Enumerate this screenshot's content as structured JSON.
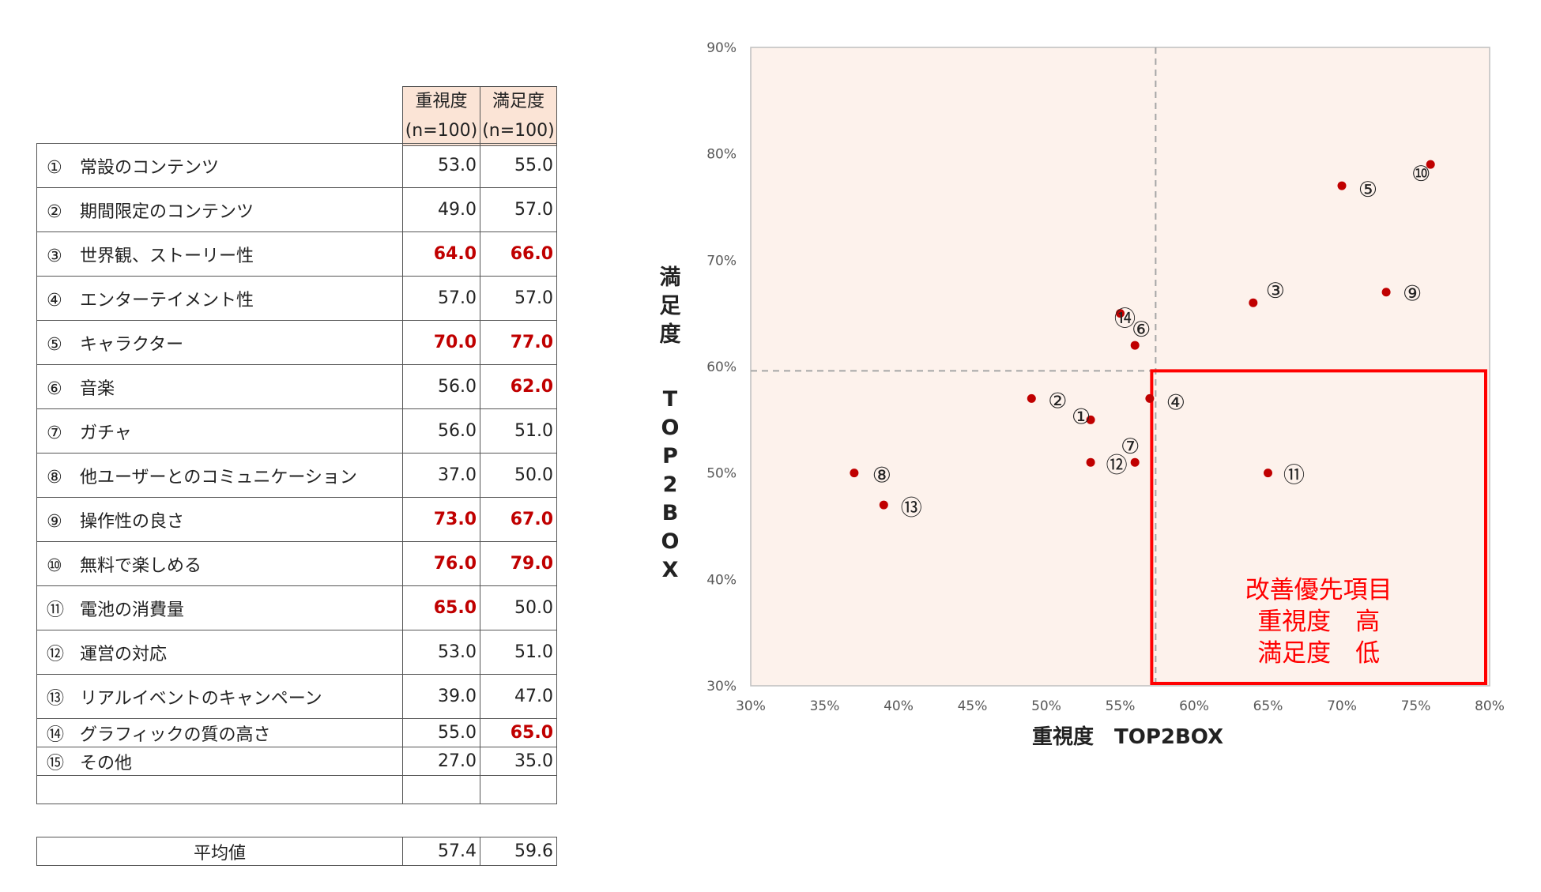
{
  "table": {
    "header": {
      "col1_line1": "重視度",
      "col1_line2": "(n=100)",
      "col2_line1": "満足度",
      "col2_line2": "(n=100)"
    },
    "rows": [
      {
        "num": "①",
        "label": "常設のコンテンツ",
        "importance": "53.0",
        "satisfaction": "55.0",
        "imp_hi": false,
        "sat_hi": false
      },
      {
        "num": "②",
        "label": "期間限定のコンテンツ",
        "importance": "49.0",
        "satisfaction": "57.0",
        "imp_hi": false,
        "sat_hi": false
      },
      {
        "num": "③",
        "label": "世界観、ストーリー性",
        "importance": "64.0",
        "satisfaction": "66.0",
        "imp_hi": true,
        "sat_hi": true
      },
      {
        "num": "④",
        "label": "エンターテイメント性",
        "importance": "57.0",
        "satisfaction": "57.0",
        "imp_hi": false,
        "sat_hi": false
      },
      {
        "num": "⑤",
        "label": "キャラクター",
        "importance": "70.0",
        "satisfaction": "77.0",
        "imp_hi": true,
        "sat_hi": true
      },
      {
        "num": "⑥",
        "label": "音楽",
        "importance": "56.0",
        "satisfaction": "62.0",
        "imp_hi": false,
        "sat_hi": true
      },
      {
        "num": "⑦",
        "label": "ガチャ",
        "importance": "56.0",
        "satisfaction": "51.0",
        "imp_hi": false,
        "sat_hi": false
      },
      {
        "num": "⑧",
        "label": "他ユーザーとのコミュニケーション",
        "importance": "37.0",
        "satisfaction": "50.0",
        "imp_hi": false,
        "sat_hi": false
      },
      {
        "num": "⑨",
        "label": "操作性の良さ",
        "importance": "73.0",
        "satisfaction": "67.0",
        "imp_hi": true,
        "sat_hi": true
      },
      {
        "num": "⑩",
        "label": "無料で楽しめる",
        "importance": "76.0",
        "satisfaction": "79.0",
        "imp_hi": true,
        "sat_hi": true
      },
      {
        "num": "⑪",
        "label": "電池の消費量",
        "importance": "65.0",
        "satisfaction": "50.0",
        "imp_hi": true,
        "sat_hi": false
      },
      {
        "num": "⑫",
        "label": "運営の対応",
        "importance": "53.0",
        "satisfaction": "51.0",
        "imp_hi": false,
        "sat_hi": false
      },
      {
        "num": "⑬",
        "label": "リアルイベントのキャンペーン",
        "importance": "39.0",
        "satisfaction": "47.0",
        "imp_hi": false,
        "sat_hi": false
      },
      {
        "num": "⑭",
        "label": "グラフィックの質の高さ",
        "importance": "55.0",
        "satisfaction": "65.0",
        "imp_hi": false,
        "sat_hi": true
      },
      {
        "num": "⑮",
        "label": "その他",
        "importance": "27.0",
        "satisfaction": "35.0",
        "imp_hi": false,
        "sat_hi": false
      }
    ],
    "average": {
      "label": "平均値",
      "importance": "57.4",
      "satisfaction": "59.6"
    }
  },
  "colors": {
    "highlight_text": "#c00000",
    "header_fill": "#fbe4d6",
    "plot_fill": "#fdf2ec",
    "marker": "#c00000",
    "priority_box": "#ff0000"
  },
  "chart_data": {
    "type": "scatter",
    "xlabel": "重視度　TOP2BOX",
    "ylabel": "満足度　TOP2BOX",
    "xlim": [
      30,
      80
    ],
    "ylim": [
      30,
      90
    ],
    "x_ticks": [
      "30%",
      "35%",
      "40%",
      "45%",
      "50%",
      "55%",
      "60%",
      "65%",
      "70%",
      "75%",
      "80%"
    ],
    "y_ticks": [
      "30%",
      "40%",
      "50%",
      "60%",
      "70%",
      "80%",
      "90%"
    ],
    "grid": false,
    "reference_lines": {
      "x": 57.4,
      "y": 59.6
    },
    "points": [
      {
        "label": "①",
        "x": 53,
        "y": 55
      },
      {
        "label": "②",
        "x": 49,
        "y": 57
      },
      {
        "label": "③",
        "x": 64,
        "y": 66
      },
      {
        "label": "④",
        "x": 57,
        "y": 57
      },
      {
        "label": "⑤",
        "x": 70,
        "y": 77
      },
      {
        "label": "⑥",
        "x": 56,
        "y": 62
      },
      {
        "label": "⑦",
        "x": 56,
        "y": 51
      },
      {
        "label": "⑧",
        "x": 37,
        "y": 50
      },
      {
        "label": "⑨",
        "x": 73,
        "y": 67
      },
      {
        "label": "⑩",
        "x": 76,
        "y": 79
      },
      {
        "label": "⑪",
        "x": 65,
        "y": 50
      },
      {
        "label": "⑫",
        "x": 53,
        "y": 51
      },
      {
        "label": "⑬",
        "x": 39,
        "y": 47
      },
      {
        "label": "⑭",
        "x": 55,
        "y": 65
      }
    ],
    "priority_area": {
      "x_range": [
        57.4,
        80
      ],
      "y_range": [
        30,
        59.6
      ],
      "text": [
        "改善優先項目",
        "重視度　高",
        "満足度　低"
      ]
    }
  }
}
